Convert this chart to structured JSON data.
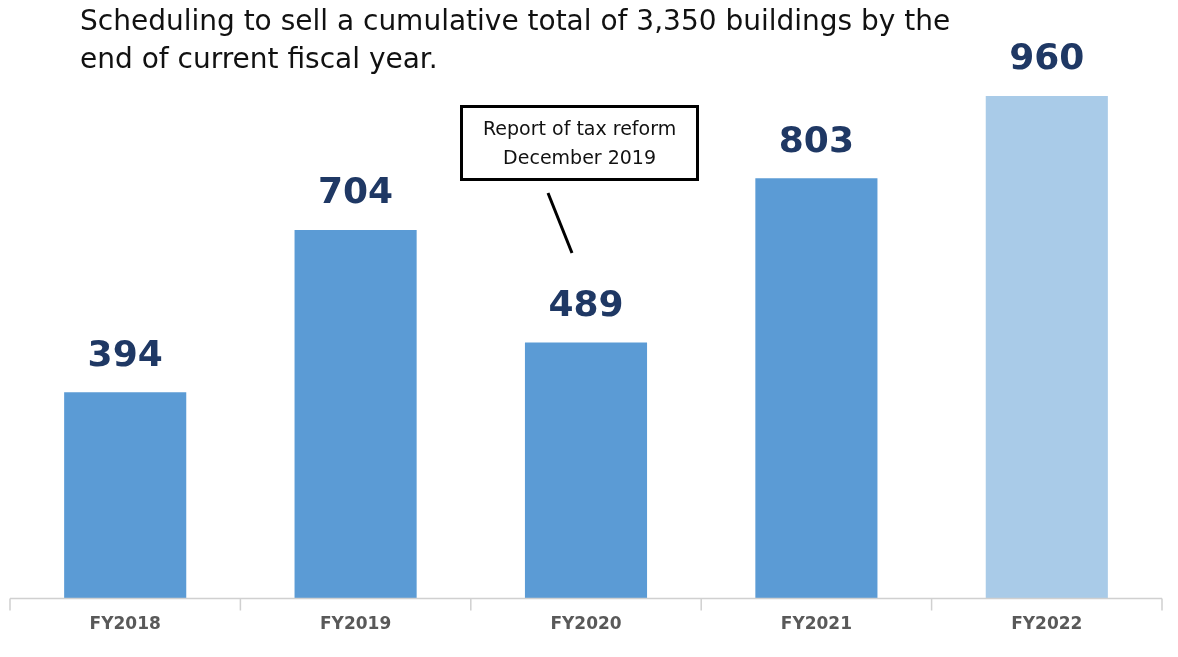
{
  "chart_data": {
    "type": "bar",
    "title": "Scheduling to sell a cumulative total of 3,350 buildings by the end of current fiscal year.",
    "categories": [
      "FY2018",
      "FY2019",
      "FY2020",
      "FY2021",
      "FY2022"
    ],
    "values": [
      394,
      704,
      489,
      803,
      960
    ],
    "colors": [
      "#5b9bd5",
      "#5b9bd5",
      "#5b9bd5",
      "#5b9bd5",
      "#a9cbe8"
    ],
    "data_labels": true,
    "grid": false,
    "legend": false,
    "annotations": [
      "Report of tax reform\nDecember 2019"
    ]
  }
}
